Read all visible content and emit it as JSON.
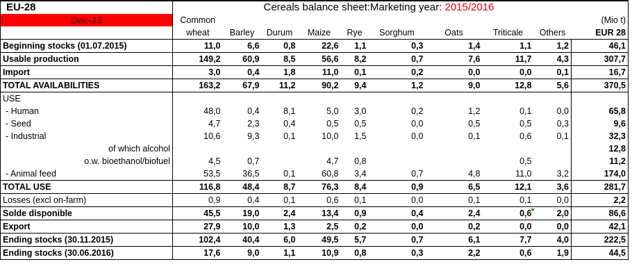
{
  "header": {
    "region": "EU-28",
    "date": "Dec-15",
    "title": "Cereals balance sheet:Marketing year:",
    "year": "2015/2016",
    "unit": "(Mio t)",
    "cols_top": [
      "Common",
      "",
      "",
      "",
      "",
      "",
      "",
      "",
      "",
      ""
    ],
    "cols": [
      "wheat",
      "Barley",
      "Durum",
      "Maize",
      "Rye",
      "Sorghum",
      "Oats",
      "Triticale",
      "Others",
      "EUR 28"
    ]
  },
  "rows": [
    {
      "label": "Beginning stocks (01.07.2015)",
      "values": [
        "11,0",
        "6,6",
        "0,8",
        "22,6",
        "1,1",
        "0,3",
        "1,4",
        "1,1",
        "1,2",
        "46,1"
      ]
    },
    {
      "label": "Usable production",
      "values": [
        "149,2",
        "60,9",
        "8,5",
        "56,6",
        "8,2",
        "0,7",
        "7,6",
        "11,7",
        "4,3",
        "307,7"
      ]
    },
    {
      "label": "Import",
      "values": [
        "3,0",
        "0,4",
        "1,8",
        "11,0",
        "0,1",
        "0,2",
        "0,0",
        "0,0",
        "0,1",
        "16,7"
      ]
    },
    {
      "label": "TOTAL AVAILABILITIES",
      "values": [
        "163,2",
        "67,9",
        "11,2",
        "90,2",
        "9,4",
        "1,2",
        "9,0",
        "12,8",
        "5,6",
        "370,5"
      ]
    },
    {
      "label": "USE",
      "values": [
        "",
        "",
        "",
        "",
        "",
        "",
        "",
        "",
        "",
        ""
      ]
    },
    {
      "label": " - Human",
      "values": [
        "48,0",
        "0,4",
        "8,1",
        "5,0",
        "3,0",
        "0,2",
        "1,2",
        "0,1",
        "0,0",
        "65,8"
      ]
    },
    {
      "label": " - Seed",
      "values": [
        "4,7",
        "2,3",
        "0,4",
        "0,5",
        "0,5",
        "0,0",
        "0,5",
        "0,5",
        "0,3",
        "9,6"
      ]
    },
    {
      "label": " - Industrial",
      "values": [
        "10,6",
        "9,3",
        "0,1",
        "10,0",
        "1,5",
        "0,0",
        "0,1",
        "0,6",
        "0,1",
        "32,3"
      ]
    },
    {
      "label": "of which alcohol",
      "values": [
        "",
        "",
        "",
        "",
        "",
        "",
        "",
        "",
        "",
        "12,8"
      ]
    },
    {
      "label": "o.w. bioethanol/biofuel",
      "values": [
        "4,5",
        "0,7",
        "",
        "4,7",
        "0,8",
        "",
        "",
        "0,5",
        "",
        "11,2"
      ]
    },
    {
      "label": " - Animal feed",
      "values": [
        "53,5",
        "36,5",
        "0,1",
        "60,8",
        "3,4",
        "0,7",
        "4,8",
        "11,0",
        "3,2",
        "174,0"
      ]
    },
    {
      "label": "TOTAL USE",
      "values": [
        "116,8",
        "48,4",
        "8,7",
        "76,3",
        "8,4",
        "0,9",
        "6,5",
        "12,1",
        "3,6",
        "281,7"
      ]
    },
    {
      "label": "Losses (excl on-farm)",
      "values": [
        "0,9",
        "0,4",
        "0,1",
        "0,6",
        "0,1",
        "0,0",
        "0,1",
        "0,1",
        "0,0",
        "2,2"
      ]
    },
    {
      "label": "Solde disponible",
      "values": [
        "45,5",
        "19,0",
        "2,4",
        "13,4",
        "0,9",
        "0,4",
        "2,4",
        "0,6",
        "2,0",
        "86,6"
      ]
    },
    {
      "label": "Export",
      "values": [
        "27,9",
        "10,0",
        "1,3",
        "2,5",
        "0,2",
        "0,0",
        "0,2",
        "0,0",
        "0,0",
        "42,1"
      ]
    },
    {
      "label": "Ending stocks (30.11.2015)",
      "values": [
        "102,4",
        "40,4",
        "6,0",
        "49,5",
        "5,7",
        "0,7",
        "6,1",
        "7,7",
        "4,0",
        "222,5"
      ]
    },
    {
      "label": "Ending stocks (30.06.2016)",
      "values": [
        "17,6",
        "9,0",
        "1,1",
        "10,9",
        "0,8",
        "0,3",
        "2,2",
        "0,6",
        "1,9",
        "44,5"
      ]
    }
  ],
  "colors": {
    "date_bg": "#ff0000",
    "year_text": "#e8000b"
  }
}
